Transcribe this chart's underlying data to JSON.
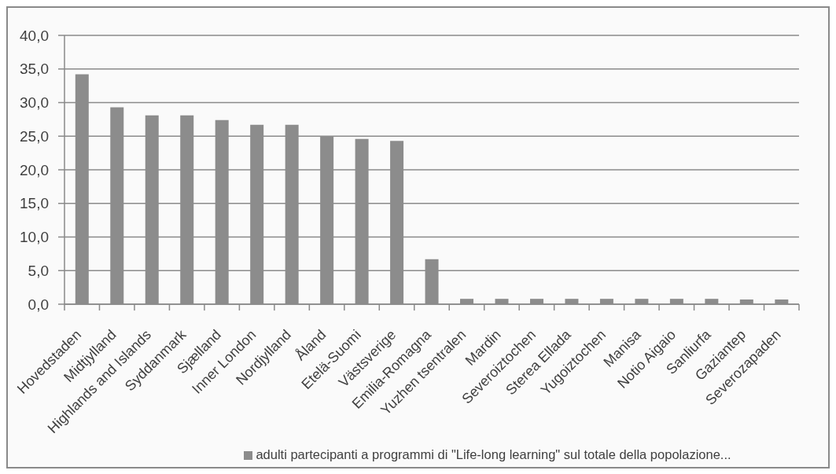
{
  "chart_data": {
    "type": "bar",
    "categories": [
      "Hovedstaden",
      "Midtjylland",
      "Highlands and Islands",
      "Syddanmark",
      "Sjælland",
      "Inner London",
      "Nordjylland",
      "Åland",
      "Etelä-Suomi",
      "Västsverige",
      "Emilia-Romagna",
      "Yuzhen tsentralen",
      "Mardin",
      "Severoiztochen",
      "Sterea Ellada",
      "Yugoiztochen",
      "Manisa",
      "Notio Aigaio",
      "Sanliurfa",
      "Gaziantep",
      "Severozapaden"
    ],
    "series": [
      {
        "name": "adulti partecipanti a programmi di \"Life-long learning\" sul totale della popolazione...",
        "color": "#8c8c8c",
        "values": [
          34.2,
          29.3,
          28.1,
          28.1,
          27.4,
          26.7,
          26.7,
          25.0,
          24.6,
          24.3,
          6.7,
          0.8,
          0.8,
          0.8,
          0.8,
          0.8,
          0.8,
          0.8,
          0.8,
          0.7,
          0.7
        ]
      }
    ],
    "ylim": [
      0,
      40
    ],
    "yticks": [
      {
        "value": 0,
        "label": "0,0"
      },
      {
        "value": 5,
        "label": "5,0"
      },
      {
        "value": 10,
        "label": "10,0"
      },
      {
        "value": 15,
        "label": "15,0"
      },
      {
        "value": 20,
        "label": "20,0"
      },
      {
        "value": 25,
        "label": "25,0"
      },
      {
        "value": 30,
        "label": "30,0"
      },
      {
        "value": 35,
        "label": "35,0"
      },
      {
        "value": 40,
        "label": "40,0"
      }
    ],
    "grid": "y",
    "legend": "bottom"
  }
}
